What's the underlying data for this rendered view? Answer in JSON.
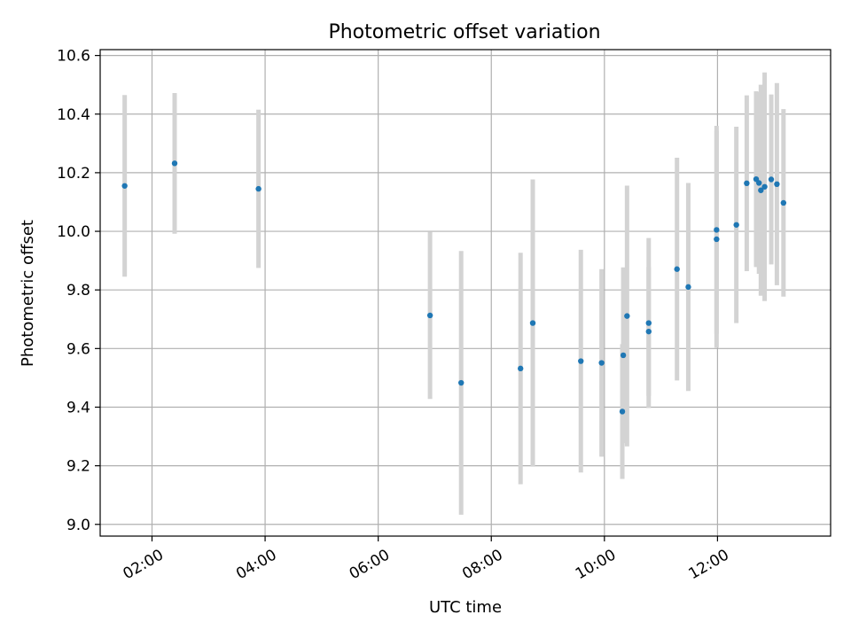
{
  "chart_data": {
    "type": "scatter",
    "title": "Photometric offset variation",
    "xlabel": "UTC time",
    "ylabel": "Photometric offset",
    "xlim": [
      "01:05",
      "14:00"
    ],
    "ylim": [
      8.96,
      10.62
    ],
    "x_ticks": [
      "02:00",
      "04:00",
      "06:00",
      "08:00",
      "10:00",
      "12:00"
    ],
    "y_ticks": [
      "9.0",
      "9.2",
      "9.4",
      "9.6",
      "9.8",
      "10.0",
      "10.2",
      "10.4",
      "10.6"
    ],
    "grid": true,
    "colors": {
      "point": "#1f77b4",
      "errorbar": "#d3d3d3",
      "grid": "#b0b0b0"
    },
    "series": [
      {
        "points": [
          {
            "x": "01:31",
            "y": 10.155,
            "err": 0.31
          },
          {
            "x": "02:24",
            "y": 10.232,
            "err": 0.24
          },
          {
            "x": "03:53",
            "y": 10.145,
            "err": 0.27
          },
          {
            "x": "06:55",
            "y": 9.713,
            "err": 0.285
          },
          {
            "x": "07:28",
            "y": 9.483,
            "err": 0.45
          },
          {
            "x": "08:31",
            "y": 9.532,
            "err": 0.395
          },
          {
            "x": "08:44",
            "y": 9.687,
            "err": 0.49
          },
          {
            "x": "09:35",
            "y": 9.557,
            "err": 0.38
          },
          {
            "x": "09:57",
            "y": 9.551,
            "err": 0.32
          },
          {
            "x": "10:19",
            "y": 9.385,
            "err": 0.23
          },
          {
            "x": "10:20",
            "y": 9.577,
            "err": 0.3
          },
          {
            "x": "10:24",
            "y": 9.711,
            "err": 0.445
          },
          {
            "x": "10:47",
            "y": 9.687,
            "err": 0.29
          },
          {
            "x": "10:47",
            "y": 9.658,
            "err": 0.22
          },
          {
            "x": "11:17",
            "y": 9.871,
            "err": 0.38
          },
          {
            "x": "11:29",
            "y": 9.81,
            "err": 0.355
          },
          {
            "x": "11:59",
            "y": 10.005,
            "err": 0.355
          },
          {
            "x": "11:59",
            "y": 9.973,
            "err": 0.37
          },
          {
            "x": "12:20",
            "y": 10.022,
            "err": 0.335
          },
          {
            "x": "12:31",
            "y": 10.164,
            "err": 0.3
          },
          {
            "x": "12:41",
            "y": 10.178,
            "err": 0.3
          },
          {
            "x": "12:44",
            "y": 10.165,
            "err": 0.31
          },
          {
            "x": "12:46",
            "y": 10.14,
            "err": 0.36
          },
          {
            "x": "12:50",
            "y": 10.152,
            "err": 0.39
          },
          {
            "x": "12:57",
            "y": 10.177,
            "err": 0.29
          },
          {
            "x": "13:03",
            "y": 10.161,
            "err": 0.345
          },
          {
            "x": "13:10",
            "y": 10.097,
            "err": 0.32
          }
        ]
      }
    ]
  }
}
